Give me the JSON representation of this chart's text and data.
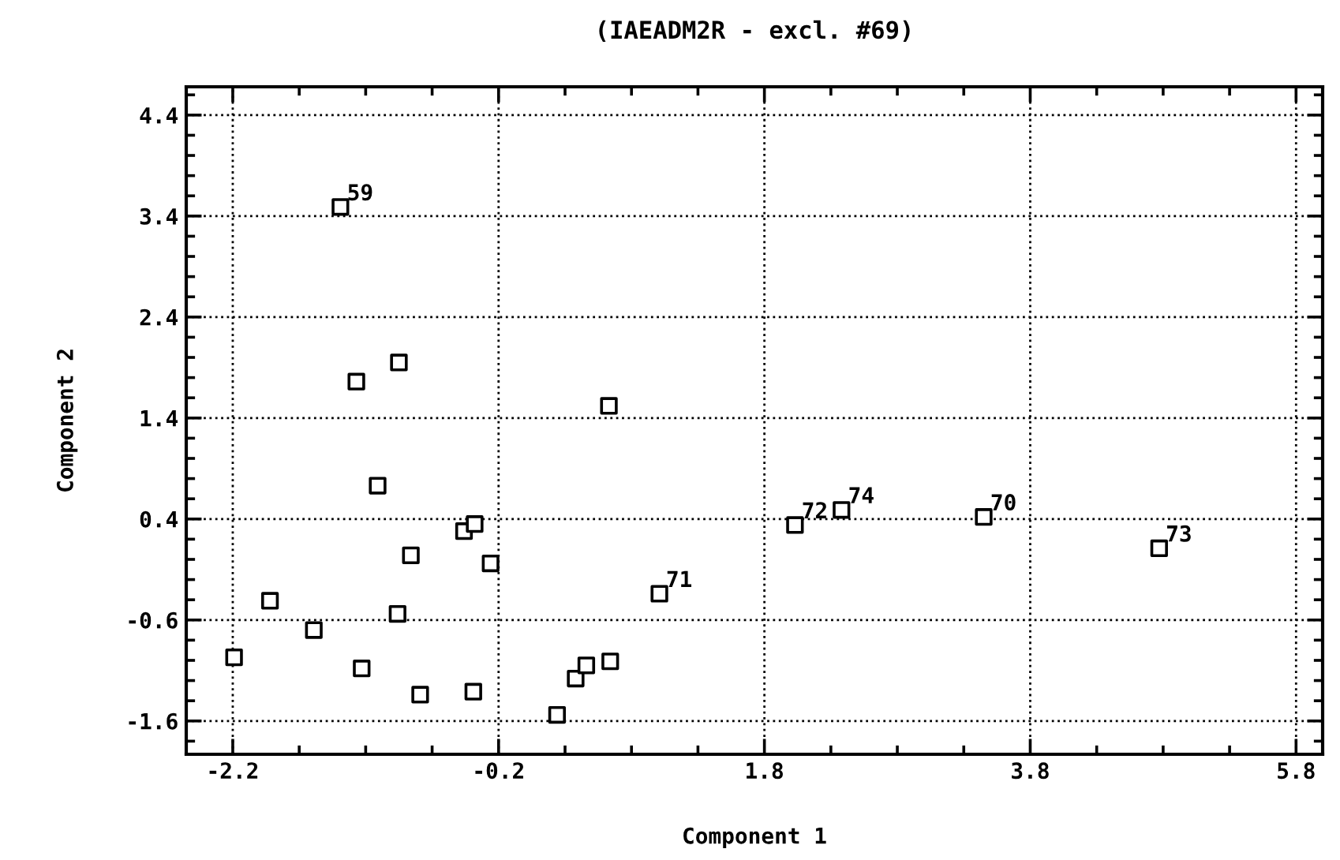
{
  "chart_data": {
    "type": "scatter",
    "title": "(IAEADM2R - excl. #69)",
    "xlabel": "Component 1",
    "ylabel": "Component 2",
    "x": [
      -1.39,
      -1.27,
      -0.95,
      0.63,
      -1.11,
      -0.46,
      -0.38,
      -0.86,
      -0.26,
      -1.92,
      -0.96,
      -1.59,
      -2.19,
      -1.23,
      -0.79,
      -0.39,
      0.24,
      0.38,
      0.46,
      0.64,
      1.01,
      2.03,
      2.38,
      3.45,
      4.77
    ],
    "values": [
      3.49,
      1.76,
      1.95,
      1.52,
      0.73,
      0.28,
      0.35,
      0.04,
      -0.04,
      -0.41,
      -0.54,
      -0.7,
      -0.97,
      -1.08,
      -1.34,
      -1.31,
      -1.54,
      -1.18,
      -1.05,
      -1.01,
      -0.34,
      0.34,
      0.49,
      0.42,
      0.11
    ],
    "color": "#000000",
    "marker": "square",
    "annotations": [
      {
        "text": "59",
        "x": -1.39,
        "y": 3.49
      },
      {
        "text": "71",
        "x": 1.01,
        "y": -0.34
      },
      {
        "text": "72",
        "x": 2.03,
        "y": 0.34
      },
      {
        "text": "74",
        "x": 2.38,
        "y": 0.49
      },
      {
        "text": "70",
        "x": 3.45,
        "y": 0.42
      },
      {
        "text": "73",
        "x": 4.77,
        "y": 0.11
      }
    ],
    "xlim": [
      -2.55,
      6.0
    ],
    "ylim": [
      -1.93,
      4.68
    ],
    "xticks": [
      -2.2,
      -0.2,
      1.8,
      3.8,
      5.8
    ],
    "yticks": [
      -1.6,
      -0.6,
      0.4,
      1.4,
      2.4,
      3.4,
      4.4
    ],
    "grid": true,
    "legend": false
  }
}
